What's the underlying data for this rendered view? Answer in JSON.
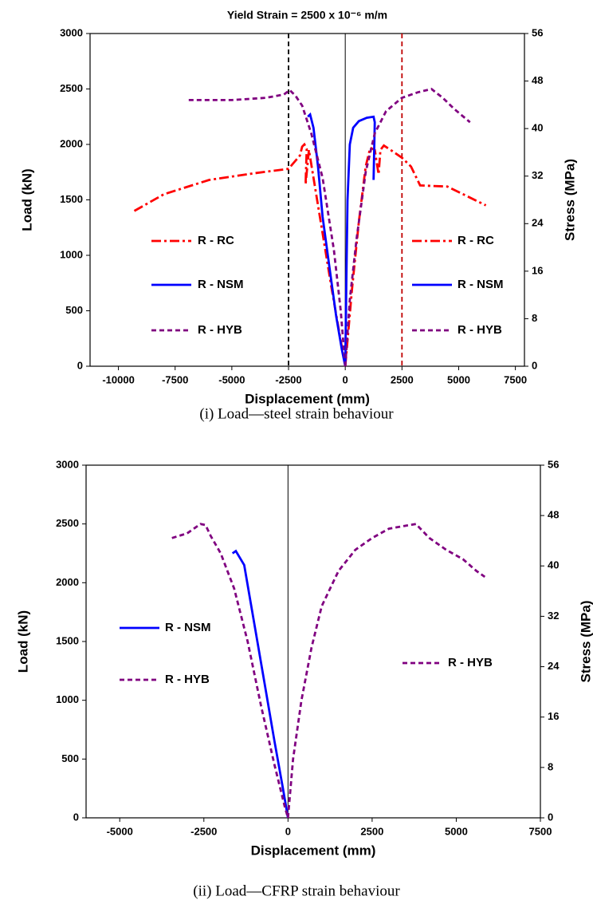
{
  "chart_data": [
    {
      "type": "line",
      "title": "Yield Strain = 2500 x 10⁻⁶ m/m",
      "caption": "(i) Load—steel strain behaviour",
      "x_label": "Displacement (mm)",
      "y_label": "Load (kN)",
      "y2_label": "Stress (MPa)",
      "xlim": [
        -11250,
        7900
      ],
      "xticks": [
        -10000,
        -7500,
        -5000,
        -2500,
        0,
        2500,
        5000,
        7500
      ],
      "ylim": [
        0,
        3000
      ],
      "yticks": [
        0,
        500,
        1000,
        1500,
        2000,
        2500,
        3000
      ],
      "y2lim": [
        0,
        56
      ],
      "y2ticks": [
        0,
        8,
        16,
        24,
        32,
        40,
        48,
        56
      ],
      "vlines": [
        {
          "x": -2500,
          "color": "#000000",
          "style": "dashed"
        },
        {
          "x": 2500,
          "color": "#c00000",
          "style": "dashed"
        },
        {
          "x": 0,
          "color": "#000000",
          "style": "solid"
        }
      ],
      "series": [
        {
          "name": "R - RC",
          "color": "#ff0000",
          "style": "dash-dot",
          "legend": "left",
          "x": [
            -9300,
            -8000,
            -6000,
            -4000,
            -2500,
            -2000,
            -1900,
            -1800,
            -1700,
            -1750,
            -1600,
            -1400,
            -1000,
            -600,
            -300,
            0
          ],
          "values": [
            1400,
            1550,
            1680,
            1740,
            1780,
            1900,
            1980,
            2000,
            1960,
            1640,
            1950,
            1700,
            1200,
            700,
            350,
            0
          ]
        },
        {
          "name": "R - NSM",
          "color": "#0000ff",
          "style": "solid",
          "legend": "left",
          "x": [
            -1650,
            -1550,
            -1400,
            -1200,
            -1000,
            -700,
            -400,
            -150,
            0
          ],
          "values": [
            2250,
            2270,
            2150,
            1800,
            1350,
            900,
            450,
            150,
            0
          ]
        },
        {
          "name": "R - HYB",
          "color": "#800080",
          "style": "dashed",
          "legend": "left",
          "x": [
            -6900,
            -5000,
            -3500,
            -2700,
            -2450,
            -2200,
            -1900,
            -1500,
            -1000,
            -500,
            -200,
            0
          ],
          "values": [
            2400,
            2400,
            2420,
            2450,
            2490,
            2440,
            2350,
            2100,
            1700,
            1050,
            500,
            0
          ]
        },
        {
          "name": "R - RC",
          "color": "#ff0000",
          "style": "dash-dot",
          "legend": "right",
          "x": [
            0,
            300,
            600,
            900,
            1100,
            1300,
            1470,
            1550,
            1700,
            2000,
            2500,
            2900,
            3300,
            4500,
            5200,
            6200
          ],
          "values": [
            0,
            700,
            1300,
            1800,
            1970,
            1950,
            1730,
            1950,
            1990,
            1950,
            1880,
            1800,
            1630,
            1620,
            1550,
            1450
          ]
        },
        {
          "name": "R - NSM",
          "color": "#0000ff",
          "style": "solid",
          "legend": "right",
          "x": [
            0,
            50,
            100,
            200,
            350,
            600,
            950,
            1250,
            1300,
            1250
          ],
          "values": [
            0,
            800,
            1500,
            2000,
            2150,
            2210,
            2240,
            2250,
            2200,
            1680
          ]
        },
        {
          "name": "R - HYB",
          "color": "#800080",
          "style": "dashed",
          "legend": "right",
          "x": [
            0,
            200,
            500,
            900,
            1300,
            1800,
            2500,
            3200,
            3800,
            4300,
            4800,
            5500
          ],
          "values": [
            0,
            600,
            1150,
            1750,
            2100,
            2300,
            2420,
            2470,
            2500,
            2420,
            2320,
            2200
          ]
        }
      ]
    },
    {
      "type": "line",
      "caption": "(ii) Load—CFRP strain behaviour",
      "x_label": "Displacement (mm)",
      "y_label": "Load (kN)",
      "y2_label": "Stress (MPa)",
      "xlim": [
        -6000,
        7500
      ],
      "xticks": [
        -5000,
        -2500,
        0,
        2500,
        5000,
        7500
      ],
      "ylim": [
        0,
        3000
      ],
      "yticks": [
        0,
        500,
        1000,
        1500,
        2000,
        2500,
        3000
      ],
      "y2lim": [
        0,
        56
      ],
      "y2ticks": [
        0,
        8,
        16,
        24,
        32,
        40,
        48,
        56
      ],
      "vlines": [
        {
          "x": 0,
          "color": "#000000",
          "style": "solid"
        }
      ],
      "series": [
        {
          "name": "R - NSM",
          "color": "#0000ff",
          "style": "solid",
          "legend": "left",
          "x": [
            -1650,
            -1550,
            -1300,
            -1000,
            -700,
            -400,
            -150,
            0
          ],
          "values": [
            2250,
            2270,
            2150,
            1650,
            1150,
            650,
            250,
            0
          ]
        },
        {
          "name": "R - HYB",
          "color": "#800080",
          "style": "dashed",
          "legend": "left",
          "x": [
            -3450,
            -3000,
            -2600,
            -2450,
            -2300,
            -2000,
            -1600,
            -1200,
            -800,
            -400,
            -100,
            0
          ],
          "values": [
            2380,
            2420,
            2500,
            2490,
            2400,
            2250,
            1950,
            1500,
            950,
            450,
            100,
            0
          ]
        },
        {
          "name": "R - HYB",
          "color": "#800080",
          "style": "dashed",
          "legend": "right",
          "x": [
            0,
            150,
            400,
            700,
            1000,
            1500,
            2000,
            2500,
            3000,
            3400,
            3800,
            4200,
            4700,
            5200,
            5600,
            5850
          ],
          "values": [
            0,
            500,
            1000,
            1450,
            1800,
            2100,
            2280,
            2380,
            2460,
            2480,
            2500,
            2380,
            2280,
            2200,
            2100,
            2050
          ]
        }
      ]
    }
  ]
}
